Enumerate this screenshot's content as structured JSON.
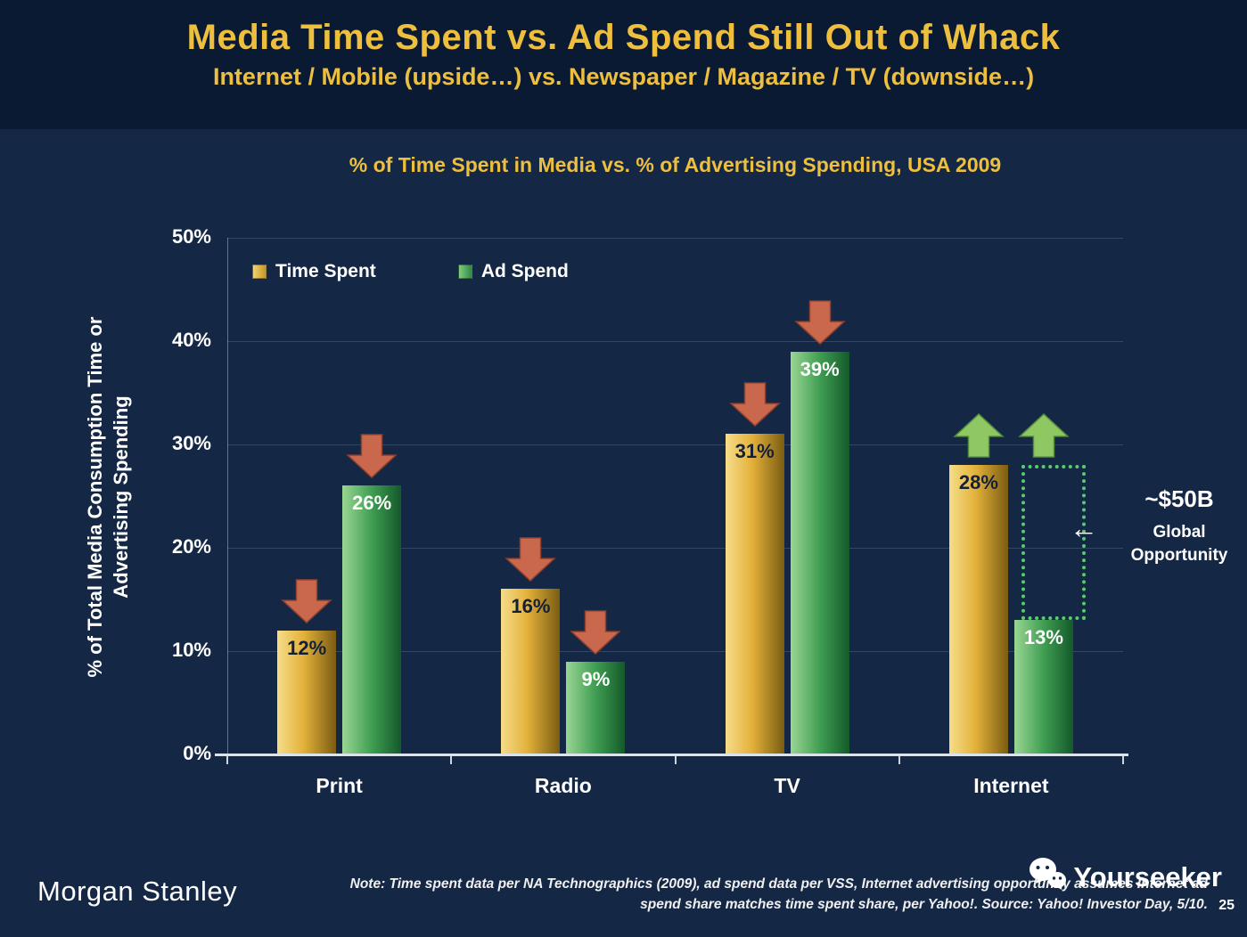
{
  "header": {
    "title": "Media Time Spent vs. Ad Spend Still Out of Whack",
    "subtitle": "Internet / Mobile (upside…) vs. Newspaper / Magazine / TV (downside…)"
  },
  "annotation": {
    "value": "~$50B",
    "arrow": "←",
    "line1": "Global",
    "line2": "Opportunity"
  },
  "footer": {
    "brand": "Morgan Stanley",
    "note_line1": "Note: Time spent data per NA Technographics (2009), ad spend data per VSS, Internet advertising opportunity assumes Internet ad",
    "note_line2": "spend share matches time spent share, per Yahoo!. Source: Yahoo! Investor Day, 5/10.",
    "watermark": "Yourseeker",
    "page_number": "25"
  },
  "chart_data": {
    "type": "bar",
    "title": "% of Time Spent in Media vs. % of Advertising Spending, USA 2009",
    "ylabel": "% of Total Media Consumption Time or Advertising Spending",
    "categories": [
      "Print",
      "Radio",
      "TV",
      "Internet"
    ],
    "series": [
      {
        "name": "Time Spent",
        "color": "gold",
        "values": [
          12,
          16,
          31,
          28
        ]
      },
      {
        "name": "Ad Spend",
        "color": "green",
        "values": [
          26,
          9,
          39,
          13
        ]
      }
    ],
    "unit": "%",
    "ylim": [
      0,
      50
    ],
    "ytick_step": 10,
    "grid": true,
    "legend_position": "top-left-inside",
    "trend_arrows": {
      "Print": [
        "down",
        "down"
      ],
      "Radio": [
        "down",
        "down"
      ],
      "TV": [
        "down",
        "down"
      ],
      "Internet": [
        "up",
        "up"
      ]
    },
    "opportunity_box": {
      "category": "Internet",
      "series": "Ad Spend",
      "from": 13,
      "to": 28
    }
  },
  "colors": {
    "header_bg": "#0a1a33",
    "slide_bg": "#142846",
    "accent_gold": "#eebf3f",
    "bar_gold": "#e3b13a",
    "bar_green": "#3f9e52",
    "arrow_down_red": "#c9684c",
    "arrow_up_green": "#8fc763",
    "opportunity_green": "#55cd6b"
  }
}
